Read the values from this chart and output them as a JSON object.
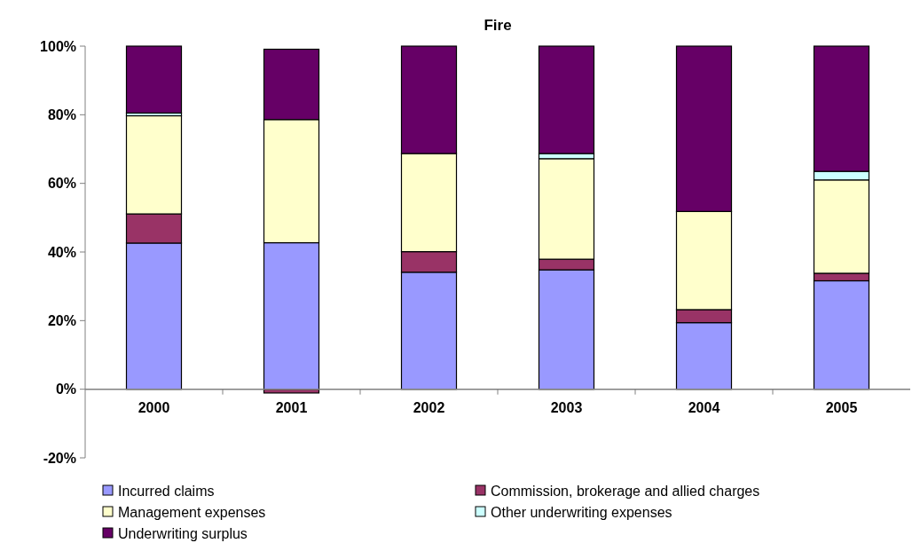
{
  "chart_data": {
    "type": "bar",
    "title": "Fire",
    "stacked": true,
    "categories": [
      "2000",
      "2001",
      "2002",
      "2003",
      "2004",
      "2005"
    ],
    "series": [
      {
        "name": "Incurred claims",
        "color": "#9999ff",
        "values": [
          42.6,
          42.7,
          34.1,
          34.8,
          19.4,
          31.6
        ]
      },
      {
        "name": "Commission, brokerage and allied charges",
        "color": "#993366",
        "values": [
          8.5,
          -1.1,
          6.0,
          3.1,
          3.8,
          2.2
        ]
      },
      {
        "name": "Management expenses",
        "color": "#ffffcc",
        "values": [
          28.6,
          35.9,
          28.6,
          29.3,
          28.6,
          27.2
        ]
      },
      {
        "name": "Other underwriting expenses",
        "color": "#ccffff",
        "values": [
          0.8,
          0,
          0,
          1.5,
          0,
          2.5
        ]
      },
      {
        "name": "Underwriting surplus",
        "color": "#660066",
        "values": [
          19.5,
          20.5,
          31.3,
          31.3,
          48.2,
          36.5
        ]
      }
    ],
    "ylim": [
      -20,
      100
    ],
    "yticks": [
      {
        "value": -20,
        "label": "-20%"
      },
      {
        "value": 0,
        "label": "0%"
      },
      {
        "value": 20,
        "label": "20%"
      },
      {
        "value": 40,
        "label": "40%"
      },
      {
        "value": 60,
        "label": "60%"
      },
      {
        "value": 80,
        "label": "80%"
      },
      {
        "value": 100,
        "label": "100%"
      }
    ],
    "grid": false,
    "legend": "bottom"
  }
}
